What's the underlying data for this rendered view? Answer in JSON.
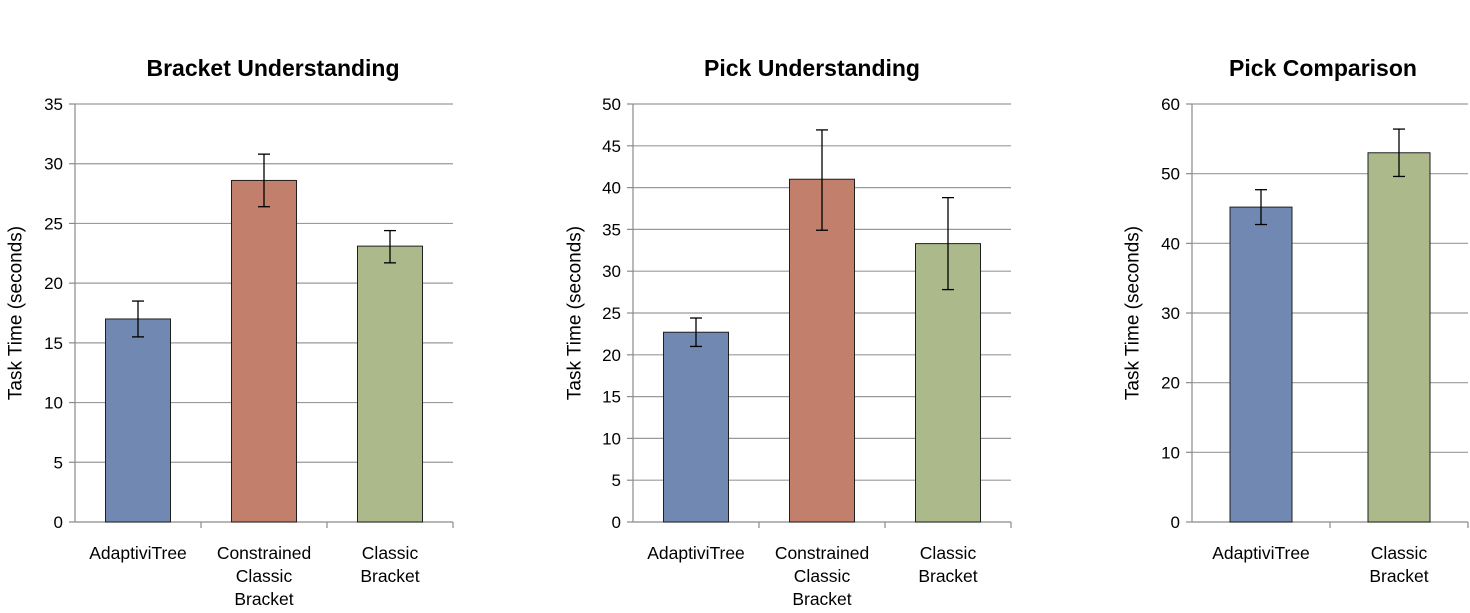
{
  "chart_data": [
    {
      "type": "bar",
      "title": "Bracket Understanding",
      "ylabel": "Task Time (seconds)",
      "xlabel": "",
      "ylim": [
        0,
        35
      ],
      "yticks": [
        0,
        5,
        10,
        15,
        20,
        25,
        30,
        35
      ],
      "grid": true,
      "categories": [
        [
          "AdaptiviTree"
        ],
        [
          "Constrained",
          "Classic",
          "Bracket"
        ],
        [
          "Classic",
          "Bracket"
        ]
      ],
      "values": [
        17.0,
        28.6,
        23.1
      ],
      "error_low": [
        15.5,
        26.4,
        21.7
      ],
      "error_high": [
        18.5,
        30.8,
        24.4
      ],
      "colors": [
        "#7189b2",
        "#c27f6b",
        "#abb98b"
      ]
    },
    {
      "type": "bar",
      "title": "Pick Understanding",
      "ylabel": "Task Time (seconds)",
      "xlabel": "",
      "ylim": [
        0,
        50
      ],
      "yticks": [
        0,
        5,
        10,
        15,
        20,
        25,
        30,
        35,
        40,
        45,
        50
      ],
      "grid": true,
      "categories": [
        [
          "AdaptiviTree"
        ],
        [
          "Constrained",
          "Classic",
          "Bracket"
        ],
        [
          "Classic",
          "Bracket"
        ]
      ],
      "values": [
        22.7,
        41.0,
        33.3
      ],
      "error_low": [
        21.0,
        34.9,
        27.8
      ],
      "error_high": [
        24.4,
        46.9,
        38.8
      ],
      "colors": [
        "#7189b2",
        "#c27f6b",
        "#abb98b"
      ]
    },
    {
      "type": "bar",
      "title": "Pick Comparison",
      "ylabel": "Task Time (seconds)",
      "xlabel": "",
      "ylim": [
        0,
        60
      ],
      "yticks": [
        0,
        10,
        20,
        30,
        40,
        50,
        60
      ],
      "grid": true,
      "categories": [
        [
          "AdaptiviTree"
        ],
        [
          "Classic",
          "Bracket"
        ]
      ],
      "values": [
        45.2,
        53.0
      ],
      "error_low": [
        42.7,
        49.6
      ],
      "error_high": [
        47.7,
        56.4
      ],
      "colors": [
        "#7189b2",
        "#abb98b"
      ]
    }
  ]
}
